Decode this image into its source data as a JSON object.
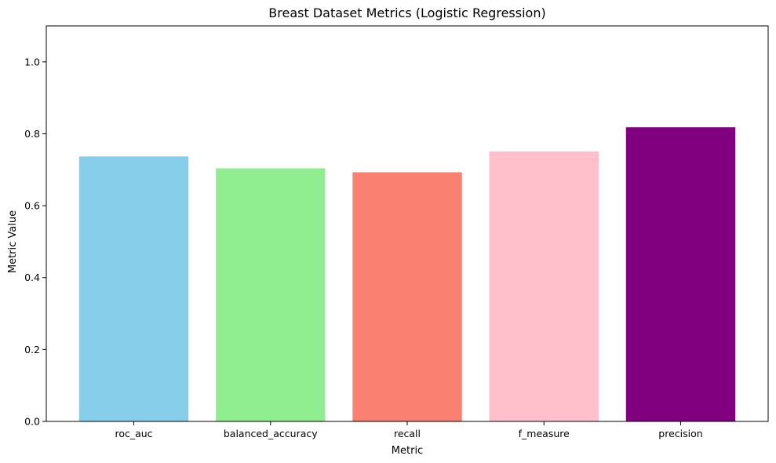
{
  "chart_data": {
    "type": "bar",
    "title": "Breast Dataset Metrics (Logistic Regression)",
    "xlabel": "Metric",
    "ylabel": "Metric Value",
    "categories": [
      "roc_auc",
      "balanced_accuracy",
      "recall",
      "f_measure",
      "precision"
    ],
    "values": [
      0.737,
      0.704,
      0.693,
      0.751,
      0.818
    ],
    "colors": [
      "#87ceeb",
      "#90ee90",
      "#fa8072",
      "#ffc0cb",
      "#800080"
    ],
    "ylim": [
      0,
      1.1
    ],
    "yticks": [
      0.0,
      0.2,
      0.4,
      0.6,
      0.8,
      1.0
    ],
    "ytick_labels": [
      "0.0",
      "0.2",
      "0.4",
      "0.6",
      "0.8",
      "1.0"
    ],
    "grid": false,
    "legend": "none"
  }
}
